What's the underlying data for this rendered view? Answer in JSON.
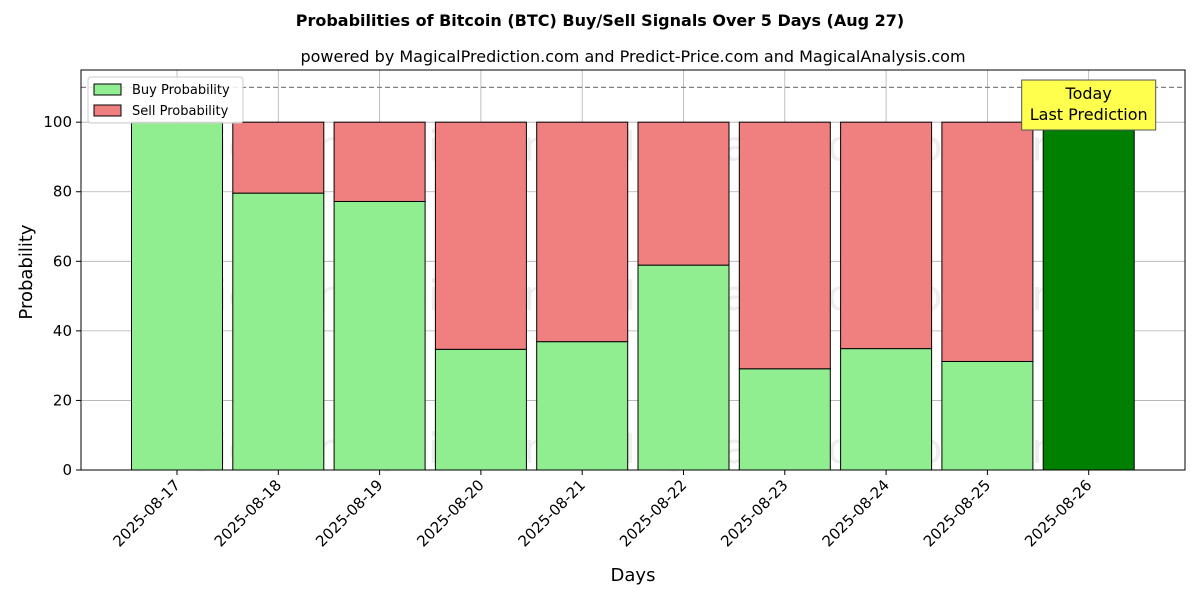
{
  "chart_data": {
    "type": "bar",
    "title": "Probabilities of Bitcoin (BTC) Buy/Sell Signals Over 5 Days (Aug 27)",
    "subtitle": "powered by MagicalPrediction.com and Predict-Price.com and MagicalAnalysis.com",
    "xlabel": "Days",
    "ylabel": "Probability",
    "ylim": [
      0,
      115
    ],
    "yticks": [
      0,
      20,
      40,
      60,
      80,
      100
    ],
    "grid": true,
    "stacked": true,
    "legend_position": "top-left",
    "categories": [
      "2025-08-17",
      "2025-08-18",
      "2025-08-19",
      "2025-08-20",
      "2025-08-21",
      "2025-08-22",
      "2025-08-23",
      "2025-08-24",
      "2025-08-25",
      "2025-08-26"
    ],
    "series": [
      {
        "name": "Buy Probability",
        "color": "#90ee90",
        "values": [
          100,
          79.6,
          77.2,
          34.7,
          36.9,
          58.9,
          29.1,
          34.9,
          31.2,
          100
        ]
      },
      {
        "name": "Sell Probability",
        "color": "#f08080",
        "values": [
          0,
          20.4,
          22.8,
          65.3,
          63.1,
          41.1,
          70.9,
          65.1,
          68.8,
          0
        ]
      }
    ],
    "highlight": {
      "category": "2025-08-26",
      "color": "#008000"
    },
    "reference_line": {
      "y": 110,
      "style": "dashed",
      "color": "#808080"
    },
    "annotation": {
      "lines": [
        "Today",
        "Last Prediction"
      ],
      "background": "#ffff4d"
    },
    "watermarks": [
      "MagicalAnalysis.com",
      "MagicalPrediction.com"
    ]
  }
}
